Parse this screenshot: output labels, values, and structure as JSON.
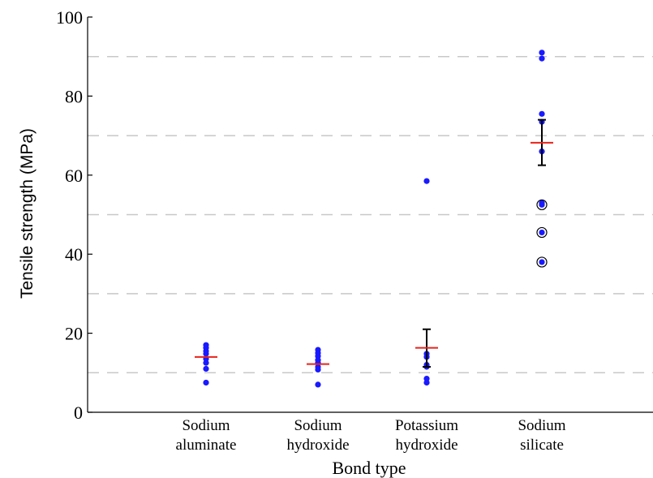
{
  "chart_data": {
    "type": "scatter",
    "xlabel": "Bond type",
    "ylabel": "Tensile strength (MPa)",
    "ylim": [
      0,
      100
    ],
    "yticks": [
      0,
      20,
      40,
      60,
      80,
      100
    ],
    "grid_lines": [
      10,
      30,
      50,
      70,
      90
    ],
    "grid": "horizontal dashed",
    "categories": [
      [
        "Sodium",
        "aluminate"
      ],
      [
        "Sodium",
        "hydroxide"
      ],
      [
        "Potassium",
        "hydroxide"
      ],
      [
        "Sodium",
        "silicate"
      ]
    ],
    "points": [
      [
        17,
        16.3,
        15.5,
        14.8,
        13.5,
        12.5,
        11,
        7.5
      ],
      [
        15.8,
        15,
        14.2,
        13.2,
        12.5,
        11.5,
        10.8,
        7
      ],
      [
        58.5,
        14.8,
        14,
        12,
        11.5,
        8.5,
        7.5
      ],
      [
        91,
        89.5,
        75.5,
        73.5,
        66,
        53,
        52.5,
        45.5,
        38
      ]
    ],
    "circled_points": [
      [],
      [],
      [],
      [
        52.5,
        45.5,
        38
      ]
    ],
    "means": [
      14,
      12.2,
      16.3,
      68.2
    ],
    "error_bars": [
      null,
      null,
      [
        11.5,
        21
      ],
      [
        62.5,
        74
      ]
    ],
    "colors": {
      "points": "#1a1aff",
      "mean": "#e8231a",
      "error": "#000000",
      "grid": "#c8c8c8",
      "axis": "#000000"
    }
  }
}
